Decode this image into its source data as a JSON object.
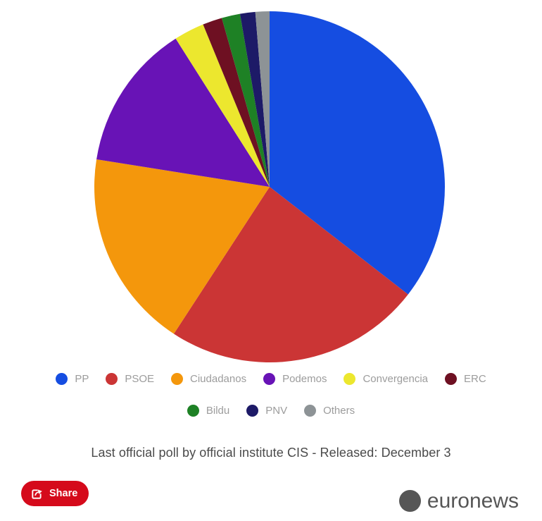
{
  "chart_data": {
    "type": "pie",
    "title": "",
    "legend_position": "bottom",
    "start_angle_deg": 0,
    "direction": "clockwise",
    "data_labels_shown": false,
    "slices": [
      {
        "label": "PP",
        "value": 35.5,
        "color": "#154de1"
      },
      {
        "label": "PSOE",
        "value": 23.7,
        "color": "#cb3535"
      },
      {
        "label": "Ciudadanos",
        "value": 18.3,
        "color": "#f4970c"
      },
      {
        "label": "Podemos",
        "value": 13.5,
        "color": "#6813b6"
      },
      {
        "label": "Convergencia",
        "value": 2.8,
        "color": "#ece72e"
      },
      {
        "label": "ERC",
        "value": 1.8,
        "color": "#6e1022"
      },
      {
        "label": "Bildu",
        "value": 1.7,
        "color": "#1e8125"
      },
      {
        "label": "PNV",
        "value": 1.4,
        "color": "#1d1a67"
      },
      {
        "label": "Others",
        "value": 1.3,
        "color": "#8d9396"
      }
    ]
  },
  "caption": "Last official poll by official institute CIS - Released: December 3",
  "footer": {
    "share_label": "Share",
    "share_button_color": "#d50a1b",
    "brand": "euronews",
    "brand_color": "#565656"
  }
}
